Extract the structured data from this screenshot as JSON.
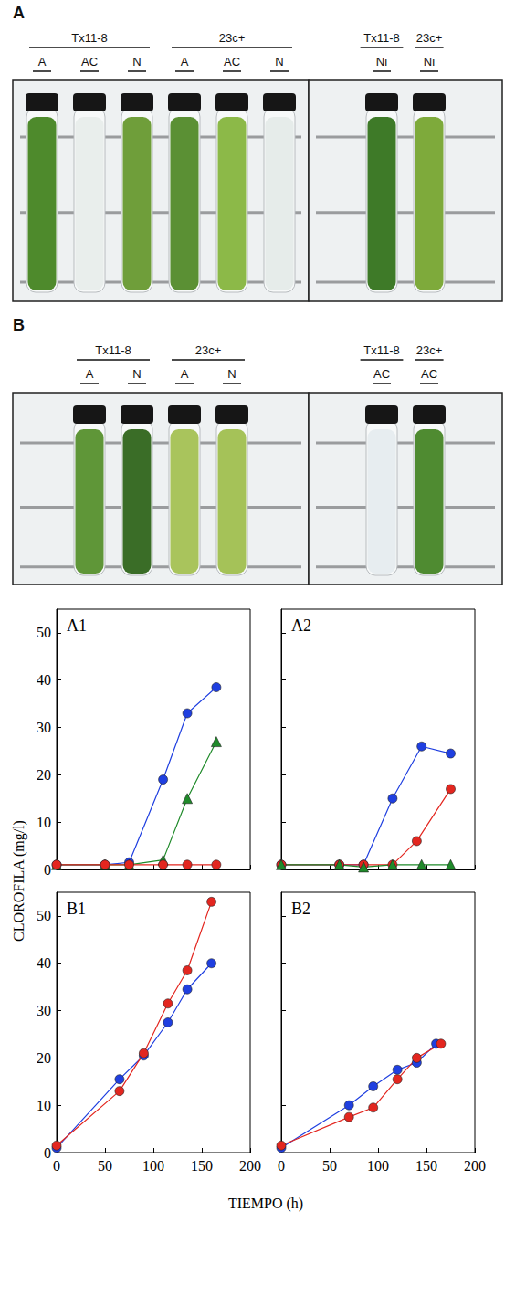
{
  "photos": [
    {
      "letter": "A",
      "boxes": [
        {
          "groups": [
            {
              "strain": "Tx11-8",
              "tubes": [
                {
                  "label": "A",
                  "color": "#4e8a2c"
                },
                {
                  "label": "AC",
                  "color": "#e9eeec"
                },
                {
                  "label": "N",
                  "color": "#6f9e3a"
                }
              ]
            },
            {
              "strain": "23c+",
              "tubes": [
                {
                  "label": "A",
                  "color": "#5b9034"
                },
                {
                  "label": "AC",
                  "color": "#8cb948"
                },
                {
                  "label": "N",
                  "color": "#e6ecea"
                }
              ]
            }
          ]
        },
        {
          "groups": [
            {
              "strain": "Tx11-8",
              "tubes": [
                {
                  "label": "Ni",
                  "color": "#3e7a28"
                }
              ]
            },
            {
              "strain": "23c+",
              "tubes": [
                {
                  "label": "Ni",
                  "color": "#7eaa3b"
                }
              ]
            }
          ]
        }
      ]
    },
    {
      "letter": "B",
      "boxes": [
        {
          "groups": [
            {
              "strain": "Tx11-8",
              "tubes": [
                {
                  "label": "A",
                  "color": "#5f9638"
                },
                {
                  "label": "N",
                  "color": "#3a6d27"
                }
              ]
            },
            {
              "strain": "23c+",
              "tubes": [
                {
                  "label": "A",
                  "color": "#a9c45c"
                },
                {
                  "label": "N",
                  "color": "#a5c258"
                }
              ]
            }
          ]
        },
        {
          "groups": [
            {
              "strain": "Tx11-8",
              "tubes": [
                {
                  "label": "AC",
                  "color": "#e7edf0"
                }
              ]
            },
            {
              "strain": "23c+",
              "tubes": [
                {
                  "label": "AC",
                  "color": "#4f8b31"
                }
              ]
            }
          ]
        }
      ]
    }
  ],
  "chart_data": {
    "type": "line",
    "xlabel": "TIEMPO (h)",
    "ylabel": "CLOROFILA (mg/l)",
    "xlim": [
      0,
      200
    ],
    "xticks": [
      0,
      50,
      100,
      150,
      200
    ],
    "ylim": [
      0,
      55
    ],
    "yticks": [
      0,
      10,
      20,
      30,
      40,
      50
    ],
    "panels": [
      {
        "title": "A1",
        "tick_labels": "y",
        "series": [
          {
            "color": "#1f3fe0",
            "marker": "circle",
            "x": [
              0,
              50,
              75,
              110,
              135,
              165
            ],
            "values": [
              1,
              1,
              1.5,
              19,
              33,
              38.5
            ]
          },
          {
            "color": "#1f8a2a",
            "marker": "triangle",
            "x": [
              0,
              50,
              75,
              110,
              135,
              165
            ],
            "values": [
              1,
              1,
              1,
              2,
              15,
              27
            ]
          },
          {
            "color": "#e3261f",
            "marker": "circle",
            "x": [
              0,
              50,
              75,
              110,
              135,
              165
            ],
            "values": [
              1,
              1,
              1,
              1,
              1,
              1
            ]
          }
        ]
      },
      {
        "title": "A2",
        "tick_labels": false,
        "series": [
          {
            "color": "#1f3fe0",
            "marker": "circle",
            "x": [
              0,
              60,
              85,
              115,
              145,
              175
            ],
            "values": [
              1,
              1,
              1,
              15,
              26,
              24.5
            ]
          },
          {
            "color": "#e3261f",
            "marker": "circle",
            "x": [
              0,
              60,
              85,
              115,
              140,
              175
            ],
            "values": [
              1,
              1,
              1,
              1,
              6,
              17
            ]
          },
          {
            "color": "#1f8a2a",
            "marker": "triangle",
            "x": [
              0,
              60,
              85,
              115,
              145,
              175
            ],
            "values": [
              1,
              1,
              0.5,
              1,
              1,
              1
            ]
          }
        ]
      },
      {
        "title": "B1",
        "series": [
          {
            "color": "#1f3fe0",
            "marker": "circle",
            "x": [
              0,
              65,
              90,
              115,
              135,
              160
            ],
            "values": [
              1,
              15.5,
              20.5,
              27.5,
              34.5,
              40
            ]
          },
          {
            "color": "#e3261f",
            "marker": "circle",
            "x": [
              0,
              65,
              90,
              115,
              135,
              160
            ],
            "values": [
              1.5,
              13,
              21,
              31.5,
              38.5,
              53
            ]
          }
        ]
      },
      {
        "title": "B2",
        "tick_labels": "x",
        "series": [
          {
            "color": "#1f3fe0",
            "marker": "circle",
            "x": [
              0,
              70,
              95,
              120,
              140,
              160
            ],
            "values": [
              1,
              10,
              14,
              17.5,
              19,
              23
            ]
          },
          {
            "color": "#e3261f",
            "marker": "circle",
            "x": [
              0,
              70,
              95,
              120,
              140,
              165
            ],
            "values": [
              1.5,
              7.5,
              9.5,
              15.5,
              20,
              23
            ]
          }
        ]
      }
    ]
  }
}
